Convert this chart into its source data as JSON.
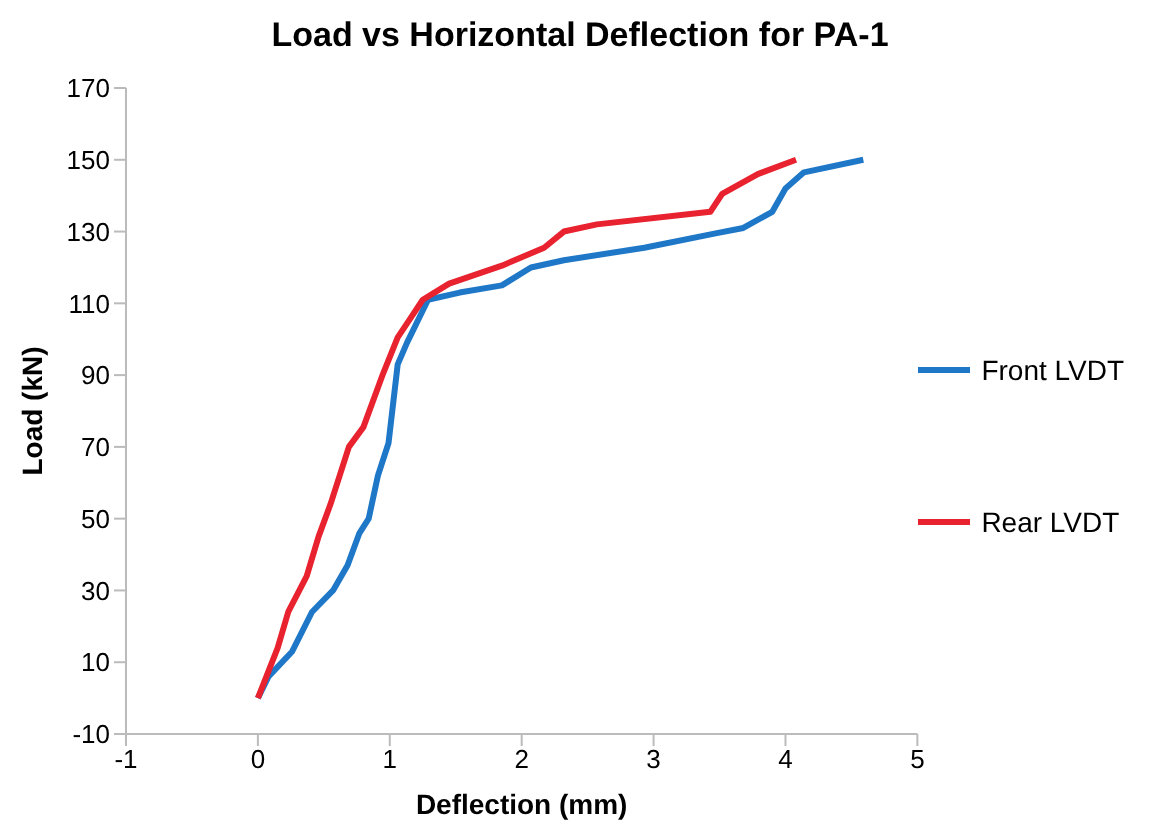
{
  "chart_data": {
    "type": "line",
    "title": "Load vs Horizontal Deflection for PA-1",
    "xlabel": "Deflection (mm)",
    "ylabel": "Load (kN)",
    "xlim": [
      -1,
      5
    ],
    "xticks": [
      -1,
      0,
      1,
      2,
      3,
      4,
      5
    ],
    "ylim": [
      -10,
      170
    ],
    "yticks": [
      -10,
      10,
      30,
      50,
      70,
      90,
      110,
      130,
      150,
      170
    ],
    "grid": false,
    "legend": "right",
    "marker": "none",
    "line_style": "solid",
    "series": [
      {
        "name": "Front LVDT",
        "color": "#1f77c8",
        "x": [
          0,
          0.08,
          0.26,
          0.41,
          0.57,
          0.68,
          0.77,
          0.84,
          0.91,
          0.99,
          1.06,
          1.13,
          1.29,
          1.53,
          1.85,
          2.07,
          2.32,
          2.93,
          3.47,
          3.68,
          3.9,
          4.0,
          4.14,
          4.59
        ],
        "values": [
          0,
          6,
          13,
          24,
          30,
          37,
          46,
          50,
          62,
          71,
          93,
          99,
          111,
          113,
          115,
          120,
          122,
          125.5,
          129.5,
          131,
          135.5,
          142,
          146.5,
          150
        ]
      },
      {
        "name": "Rear LVDT",
        "color": "#e8222e",
        "x": [
          0,
          0.15,
          0.23,
          0.37,
          0.46,
          0.55,
          0.69,
          0.8,
          0.95,
          1.06,
          1.16,
          1.25,
          1.45,
          1.85,
          2.17,
          2.32,
          2.57,
          3.43,
          3.52,
          3.79,
          4.08
        ],
        "values": [
          0,
          14,
          24,
          34,
          45,
          54,
          70,
          75.5,
          90.5,
          100.5,
          106,
          111,
          115.5,
          120.5,
          125.5,
          130,
          132,
          135.5,
          140.5,
          146,
          150
        ]
      }
    ]
  }
}
